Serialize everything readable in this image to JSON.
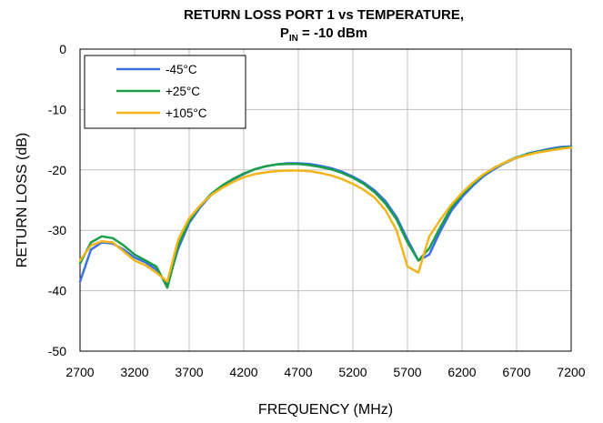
{
  "chart_data": {
    "type": "line",
    "title": "RETURN LOSS PORT 1 vs TEMPERATURE,",
    "subtitle_prefix": "P",
    "subtitle_subscript": "IN",
    "subtitle_suffix": " = -10 dBm",
    "xlabel": "FREQUENCY (MHz)",
    "ylabel": "RETURN LOSS (dB)",
    "xlim": [
      2700,
      7200
    ],
    "ylim": [
      -50,
      0
    ],
    "xticks": [
      2700,
      3200,
      3700,
      4200,
      4700,
      5200,
      5700,
      6200,
      6700,
      7200
    ],
    "yticks": [
      0,
      -10,
      -20,
      -30,
      -40,
      -50
    ],
    "grid": true,
    "legend_position": "top-left",
    "series": [
      {
        "name": "-45°C",
        "color": "#3A6FE6",
        "x": [
          2700,
          2800,
          2900,
          3000,
          3100,
          3200,
          3300,
          3400,
          3500,
          3600,
          3700,
          3800,
          3900,
          4000,
          4100,
          4200,
          4300,
          4400,
          4500,
          4600,
          4700,
          4800,
          4900,
          5000,
          5100,
          5200,
          5300,
          5400,
          5500,
          5600,
          5700,
          5800,
          5900,
          6000,
          6100,
          6200,
          6300,
          6400,
          6500,
          6600,
          6700,
          6800,
          6900,
          7000,
          7100,
          7200
        ],
        "y": [
          -38.5,
          -33.2,
          -32.0,
          -32.2,
          -33.2,
          -34.5,
          -35.3,
          -36.5,
          -39.0,
          -33.0,
          -28.8,
          -26.2,
          -24.2,
          -22.8,
          -21.6,
          -20.7,
          -19.9,
          -19.4,
          -19.1,
          -18.9,
          -18.9,
          -19.0,
          -19.3,
          -19.7,
          -20.3,
          -21.1,
          -22.1,
          -23.4,
          -25.2,
          -27.8,
          -31.5,
          -35.0,
          -34.0,
          -30.2,
          -26.8,
          -24.5,
          -22.6,
          -21.0,
          -19.8,
          -18.8,
          -18.0,
          -17.3,
          -16.9,
          -16.5,
          -16.2,
          -16.1
        ]
      },
      {
        "name": "+25°C",
        "color": "#1A9E48",
        "x": [
          2700,
          2800,
          2900,
          3000,
          3100,
          3200,
          3300,
          3400,
          3500,
          3600,
          3700,
          3800,
          3900,
          4000,
          4100,
          4200,
          4300,
          4400,
          4500,
          4600,
          4700,
          4800,
          4900,
          5000,
          5100,
          5200,
          5300,
          5400,
          5500,
          5600,
          5700,
          5800,
          5900,
          6000,
          6100,
          6200,
          6300,
          6400,
          6500,
          6600,
          6700,
          6800,
          6900,
          7000,
          7100,
          7200
        ],
        "y": [
          -35.5,
          -32.0,
          -31.0,
          -31.3,
          -32.5,
          -34.0,
          -35.0,
          -36.0,
          -39.5,
          -32.5,
          -28.5,
          -26.0,
          -24.0,
          -22.6,
          -21.5,
          -20.6,
          -19.9,
          -19.4,
          -19.1,
          -19.0,
          -19.0,
          -19.2,
          -19.5,
          -19.9,
          -20.5,
          -21.3,
          -22.3,
          -23.7,
          -25.6,
          -28.2,
          -32.0,
          -35.0,
          -33.0,
          -29.5,
          -26.3,
          -24.1,
          -22.3,
          -20.8,
          -19.6,
          -18.7,
          -17.9,
          -17.4,
          -17.0,
          -16.7,
          -16.4,
          -16.2
        ]
      },
      {
        "name": "+105°C",
        "color": "#F2B51C",
        "x": [
          2700,
          2800,
          2900,
          3000,
          3100,
          3200,
          3300,
          3400,
          3500,
          3600,
          3700,
          3800,
          3900,
          4000,
          4100,
          4200,
          4300,
          4400,
          4500,
          4600,
          4700,
          4800,
          4900,
          5000,
          5100,
          5200,
          5300,
          5400,
          5500,
          5600,
          5700,
          5800,
          5900,
          6000,
          6100,
          6200,
          6300,
          6400,
          6500,
          6600,
          6700,
          6800,
          6900,
          7000,
          7100,
          7200
        ],
        "y": [
          -35.0,
          -32.5,
          -31.8,
          -32.0,
          -33.5,
          -35.0,
          -35.8,
          -37.0,
          -38.5,
          -31.5,
          -28.0,
          -25.9,
          -24.2,
          -23.0,
          -22.0,
          -21.2,
          -20.7,
          -20.4,
          -20.2,
          -20.1,
          -20.1,
          -20.2,
          -20.5,
          -20.9,
          -21.5,
          -22.3,
          -23.3,
          -24.6,
          -26.7,
          -30.0,
          -36.0,
          -37.0,
          -31.0,
          -28.3,
          -25.8,
          -23.8,
          -22.1,
          -20.7,
          -19.6,
          -18.7,
          -18.0,
          -17.5,
          -17.1,
          -16.8,
          -16.5,
          -16.3
        ]
      }
    ]
  }
}
